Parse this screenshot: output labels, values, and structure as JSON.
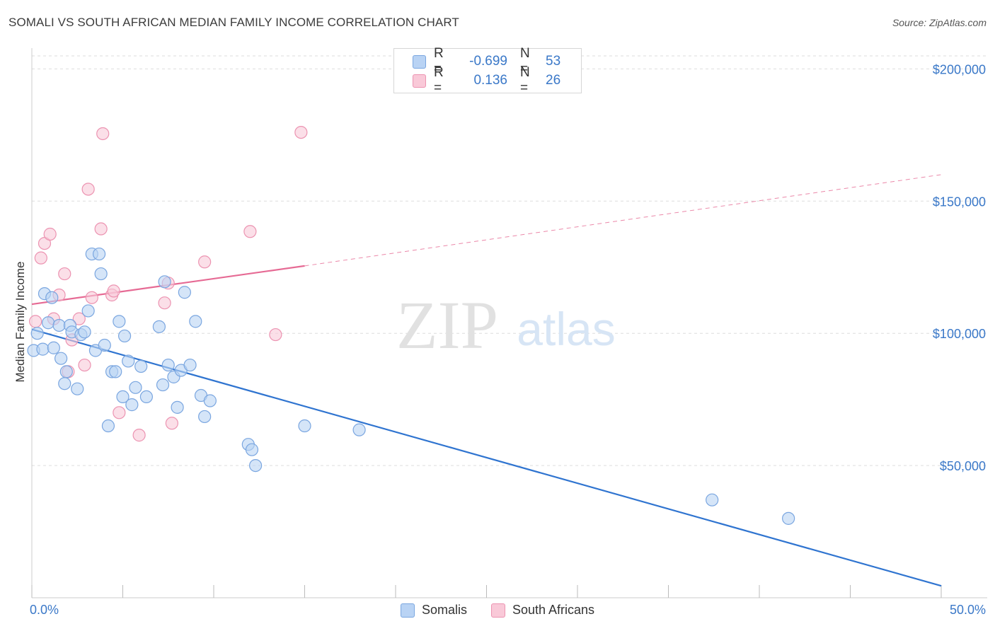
{
  "header": {
    "title": "SOMALI VS SOUTH AFRICAN MEDIAN FAMILY INCOME CORRELATION CHART",
    "source": "Source: ZipAtlas.com"
  },
  "watermark": {
    "zip": "ZIP",
    "atlas": "atlas"
  },
  "stats": {
    "rows": [
      {
        "r_label": "R =",
        "r_value": "-0.699",
        "n_label": "N =",
        "n_value": "53"
      },
      {
        "r_label": "R =",
        "r_value": "0.136",
        "n_label": "N =",
        "n_value": "26"
      }
    ]
  },
  "legend": {
    "somalis": "Somalis",
    "south_africans": "South Africans"
  },
  "colors": {
    "blue_fill": "#b9d3f4",
    "blue_stroke": "#7aa6e0",
    "blue_line": "#2f74d0",
    "pink_fill": "#f9c9d8",
    "pink_stroke": "#ec93b1",
    "pink_line": "#e66a94",
    "grid": "#dddddd",
    "tick_text": "#3a78c8"
  },
  "chart_data": {
    "type": "scatter",
    "title": "SOMALI VS SOUTH AFRICAN MEDIAN FAMILY INCOME CORRELATION CHART",
    "xlabel": "",
    "ylabel": "Median Family Income",
    "xlim": [
      0,
      50
    ],
    "ylim": [
      0,
      210000
    ],
    "x_tick_labels": [
      "0.0%",
      "50.0%"
    ],
    "y_ticks": [
      50000,
      100000,
      150000,
      200000
    ],
    "y_tick_labels": [
      "$50,000",
      "$100,000",
      "$150,000",
      "$200,000"
    ],
    "grid": true,
    "legend_position": "bottom",
    "series": [
      {
        "name": "Somalis",
        "color": "#7aa6e0",
        "r": -0.699,
        "n": 53,
        "points": [
          [
            0.1,
            93500
          ],
          [
            0.3,
            100000
          ],
          [
            0.6,
            94000
          ],
          [
            0.7,
            115000
          ],
          [
            0.9,
            104000
          ],
          [
            1.1,
            113500
          ],
          [
            1.2,
            94500
          ],
          [
            1.5,
            103000
          ],
          [
            1.6,
            90500
          ],
          [
            1.8,
            81000
          ],
          [
            1.9,
            85500
          ],
          [
            2.1,
            103000
          ],
          [
            2.2,
            100500
          ],
          [
            2.5,
            79000
          ],
          [
            2.7,
            99500
          ],
          [
            2.9,
            100500
          ],
          [
            3.1,
            108500
          ],
          [
            3.3,
            130000
          ],
          [
            3.5,
            93500
          ],
          [
            3.7,
            130000
          ],
          [
            3.8,
            122500
          ],
          [
            4.0,
            95500
          ],
          [
            4.2,
            65000
          ],
          [
            4.4,
            85500
          ],
          [
            4.6,
            85500
          ],
          [
            4.8,
            104500
          ],
          [
            5.0,
            76000
          ],
          [
            5.1,
            99000
          ],
          [
            5.3,
            89500
          ],
          [
            5.5,
            73000
          ],
          [
            5.7,
            79500
          ],
          [
            6.0,
            87500
          ],
          [
            6.3,
            76000
          ],
          [
            7.0,
            102500
          ],
          [
            7.2,
            80500
          ],
          [
            7.3,
            119500
          ],
          [
            7.5,
            88000
          ],
          [
            7.8,
            83500
          ],
          [
            8.0,
            72000
          ],
          [
            8.2,
            86000
          ],
          [
            8.4,
            115500
          ],
          [
            8.7,
            88000
          ],
          [
            9.0,
            104500
          ],
          [
            9.3,
            76500
          ],
          [
            9.5,
            68500
          ],
          [
            9.8,
            74500
          ],
          [
            11.9,
            58000
          ],
          [
            12.1,
            56000
          ],
          [
            12.3,
            50000
          ],
          [
            15.0,
            65000
          ],
          [
            18.0,
            63500
          ],
          [
            37.4,
            37000
          ],
          [
            41.6,
            30000
          ]
        ],
        "trend": {
          "x": [
            0,
            50
          ],
          "y": [
            101500,
            4500
          ]
        }
      },
      {
        "name": "South Africans",
        "color": "#ec93b1",
        "r": 0.136,
        "n": 26,
        "points": [
          [
            0.2,
            104500
          ],
          [
            0.5,
            128500
          ],
          [
            0.7,
            134000
          ],
          [
            1.0,
            137500
          ],
          [
            1.2,
            105500
          ],
          [
            1.5,
            114500
          ],
          [
            1.8,
            122500
          ],
          [
            2.0,
            85500
          ],
          [
            2.2,
            97500
          ],
          [
            2.6,
            105500
          ],
          [
            2.9,
            88000
          ],
          [
            3.1,
            154500
          ],
          [
            3.3,
            113500
          ],
          [
            3.8,
            139500
          ],
          [
            3.9,
            175500
          ],
          [
            4.4,
            114500
          ],
          [
            4.5,
            116000
          ],
          [
            4.8,
            70000
          ],
          [
            5.9,
            61500
          ],
          [
            7.3,
            111500
          ],
          [
            7.5,
            119000
          ],
          [
            7.7,
            66000
          ],
          [
            9.5,
            127000
          ],
          [
            12.0,
            138500
          ],
          [
            13.4,
            99500
          ],
          [
            14.8,
            176000
          ]
        ],
        "trend_solid": {
          "x": [
            0,
            15
          ],
          "y": [
            111000,
            125500
          ]
        },
        "trend_dashed": {
          "x": [
            15,
            50
          ],
          "y": [
            125500,
            160000
          ]
        }
      }
    ]
  }
}
